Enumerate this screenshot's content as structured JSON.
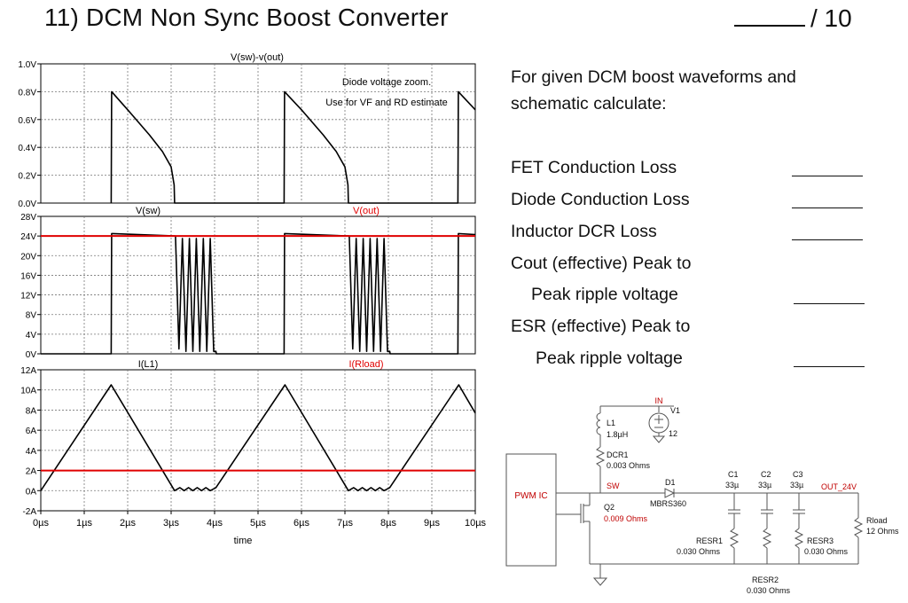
{
  "header": {
    "title": "11)  DCM Non Sync Boost Converter",
    "score": "/ 10"
  },
  "problem": {
    "intro": "For given DCM boost waveforms and schematic calculate:",
    "tasks": [
      "FET Conduction Loss",
      "Diode  Conduction  Loss",
      "Inductor DCR Loss",
      "Cout (effective)  Peak to",
      "Peak ripple voltage",
      "ESR (effective) Peak to",
      "Peak ripple voltage"
    ]
  },
  "chart_data": [
    {
      "type": "line",
      "title": "V(sw)-v(out)",
      "annotation": [
        "Diode voltage zoom.",
        "Use for VF and RD estimate"
      ],
      "ylim": [
        0,
        1.0
      ],
      "yticks": [
        "1.0V",
        "0.8V",
        "0.6V",
        "0.4V",
        "0.2V",
        "0.0V"
      ],
      "series": [
        {
          "name": "V(sw)-v(out)",
          "color": "#000000",
          "x": [
            1.62,
            1.63,
            2.0,
            2.5,
            2.8,
            3.0,
            3.07,
            3.08,
            5.6,
            5.61,
            6.0,
            6.5,
            6.8,
            7.0,
            7.07,
            7.08,
            9.6,
            9.61,
            10.0
          ],
          "y": [
            0.0,
            0.8,
            0.67,
            0.49,
            0.37,
            0.26,
            0.13,
            0.0,
            0.0,
            0.8,
            0.67,
            0.49,
            0.37,
            0.26,
            0.13,
            0.0,
            0.0,
            0.8,
            0.67
          ]
        }
      ]
    },
    {
      "type": "line",
      "legend": [
        "V(sw)",
        "V(out)"
      ],
      "ylim": [
        0,
        28
      ],
      "yticks": [
        "28V",
        "24V",
        "20V",
        "16V",
        "12V",
        "8V",
        "4V",
        "0V"
      ],
      "series": [
        {
          "name": "V(sw)",
          "color": "#000000",
          "x": [
            0,
            1.62,
            1.63,
            3.08,
            3.1,
            3.18,
            3.26,
            3.34,
            3.42,
            3.5,
            3.58,
            3.66,
            3.74,
            3.82,
            3.9,
            3.98,
            4.03,
            4.04,
            5.6,
            5.61,
            7.08,
            7.1,
            7.18,
            7.26,
            7.34,
            7.42,
            7.5,
            7.58,
            7.66,
            7.74,
            7.82,
            7.9,
            7.98,
            8.03,
            8.04,
            9.6,
            9.61,
            10.0
          ],
          "y": [
            0,
            0,
            24.5,
            24.0,
            24.0,
            1.0,
            23.5,
            0.5,
            23.5,
            0.5,
            23.5,
            0.5,
            23.5,
            0.5,
            23.5,
            0.5,
            0.5,
            0,
            0,
            24.5,
            24.0,
            24.0,
            1.0,
            23.5,
            0.5,
            23.5,
            0.5,
            23.5,
            0.5,
            23.5,
            0.5,
            23.5,
            0.5,
            0.5,
            0,
            0,
            24.5,
            24.3
          ]
        },
        {
          "name": "V(out)",
          "color": "#e00000",
          "x": [
            0,
            10
          ],
          "y": [
            24,
            24
          ]
        }
      ]
    },
    {
      "type": "line",
      "legend": [
        "I(L1)",
        "I(Rload)"
      ],
      "xlabel": "time",
      "ylim": [
        -2,
        12
      ],
      "yticks": [
        "12A",
        "10A",
        "8A",
        "6A",
        "4A",
        "2A",
        "0A",
        "-2A"
      ],
      "xticks": [
        "0µs",
        "1µs",
        "2µs",
        "3µs",
        "4µs",
        "5µs",
        "6µs",
        "7µs",
        "8µs",
        "9µs",
        "10µs"
      ],
      "series": [
        {
          "name": "I(L1)",
          "color": "#000000",
          "x": [
            0,
            1.62,
            3.08,
            3.2,
            3.3,
            3.4,
            3.5,
            3.6,
            3.7,
            3.8,
            3.9,
            4.03,
            5.62,
            7.08,
            7.2,
            7.3,
            7.4,
            7.5,
            7.6,
            7.7,
            7.8,
            7.9,
            8.03,
            9.62,
            10.0
          ],
          "y": [
            0,
            10.5,
            0,
            0.3,
            0,
            0.3,
            0,
            0.3,
            0,
            0.3,
            0,
            0.3,
            10.5,
            0,
            0.3,
            0,
            0.3,
            0,
            0.3,
            0,
            0.3,
            0,
            0.3,
            10.5,
            7.7
          ]
        },
        {
          "name": "I(Rload)",
          "color": "#e00000",
          "x": [
            0,
            10
          ],
          "y": [
            2,
            2
          ]
        }
      ]
    }
  ],
  "schematic": {
    "ctrl": "PWM IC",
    "in_label": "IN",
    "v1": {
      "name": "V1",
      "value": "12"
    },
    "l1": {
      "name": "L1",
      "value": "1.8µH"
    },
    "dcr1": {
      "name": "DCR1",
      "value": "0.003 Ohms"
    },
    "sw": "SW",
    "d1": {
      "name": "D1",
      "value": "MBRS360"
    },
    "q2": {
      "name": "Q2",
      "value": "0.009 Ohms"
    },
    "caps": [
      {
        "name": "C1",
        "value": "33µ"
      },
      {
        "name": "C2",
        "value": "33µ"
      },
      {
        "name": "C3",
        "value": "33µ"
      }
    ],
    "out": "OUT_24V",
    "rload": {
      "name": "Rload",
      "value": "12 Ohms"
    },
    "resr1": {
      "name": "RESR1",
      "value": "0.030 Ohms"
    },
    "resr2": {
      "name": "RESR2",
      "value": "0.030 Ohms"
    },
    "resr3": {
      "name": "RESR3",
      "value": "0.030 Ohms"
    },
    "label_color": "#c00000"
  }
}
